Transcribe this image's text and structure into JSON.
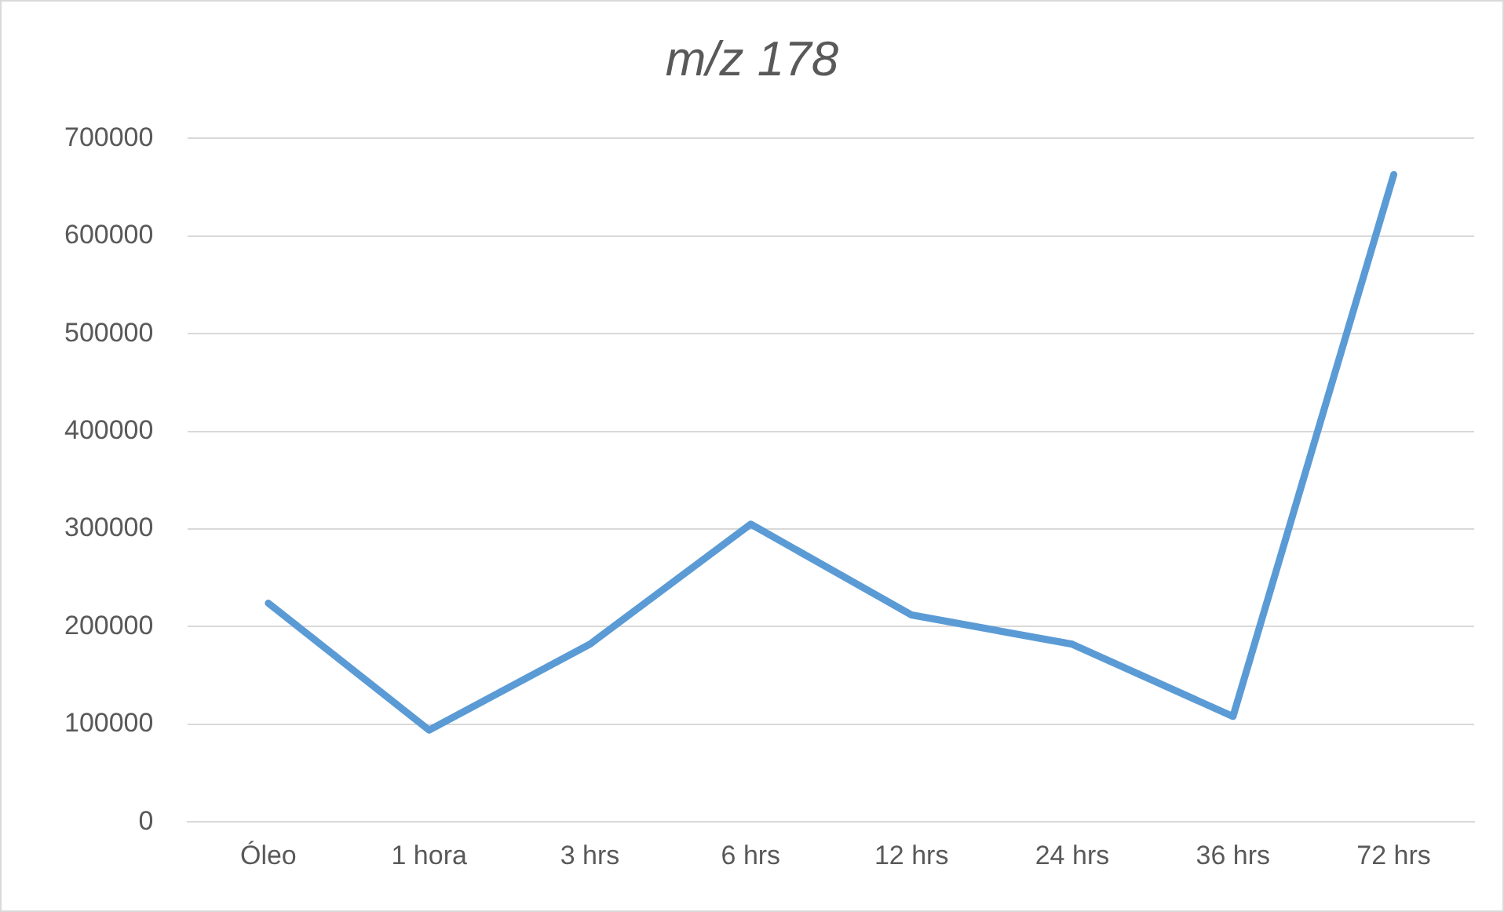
{
  "chart_data": {
    "type": "line",
    "title": "m/z 178",
    "categories": [
      "Óleo",
      "1 hora",
      "3 hrs",
      "6 hrs",
      "12 hrs",
      "24 hrs",
      "36 hrs",
      "72 hrs"
    ],
    "series": [
      {
        "color": "#5b9bd5",
        "values": [
          224000,
          94000,
          182000,
          305000,
          212000,
          182000,
          108000,
          663000
        ]
      }
    ],
    "ylim": [
      0,
      700000
    ],
    "yticks": [
      0,
      100000,
      200000,
      300000,
      400000,
      500000,
      600000,
      700000
    ],
    "grid": "y",
    "legend": false,
    "marker": "none",
    "line_style": "solid"
  }
}
